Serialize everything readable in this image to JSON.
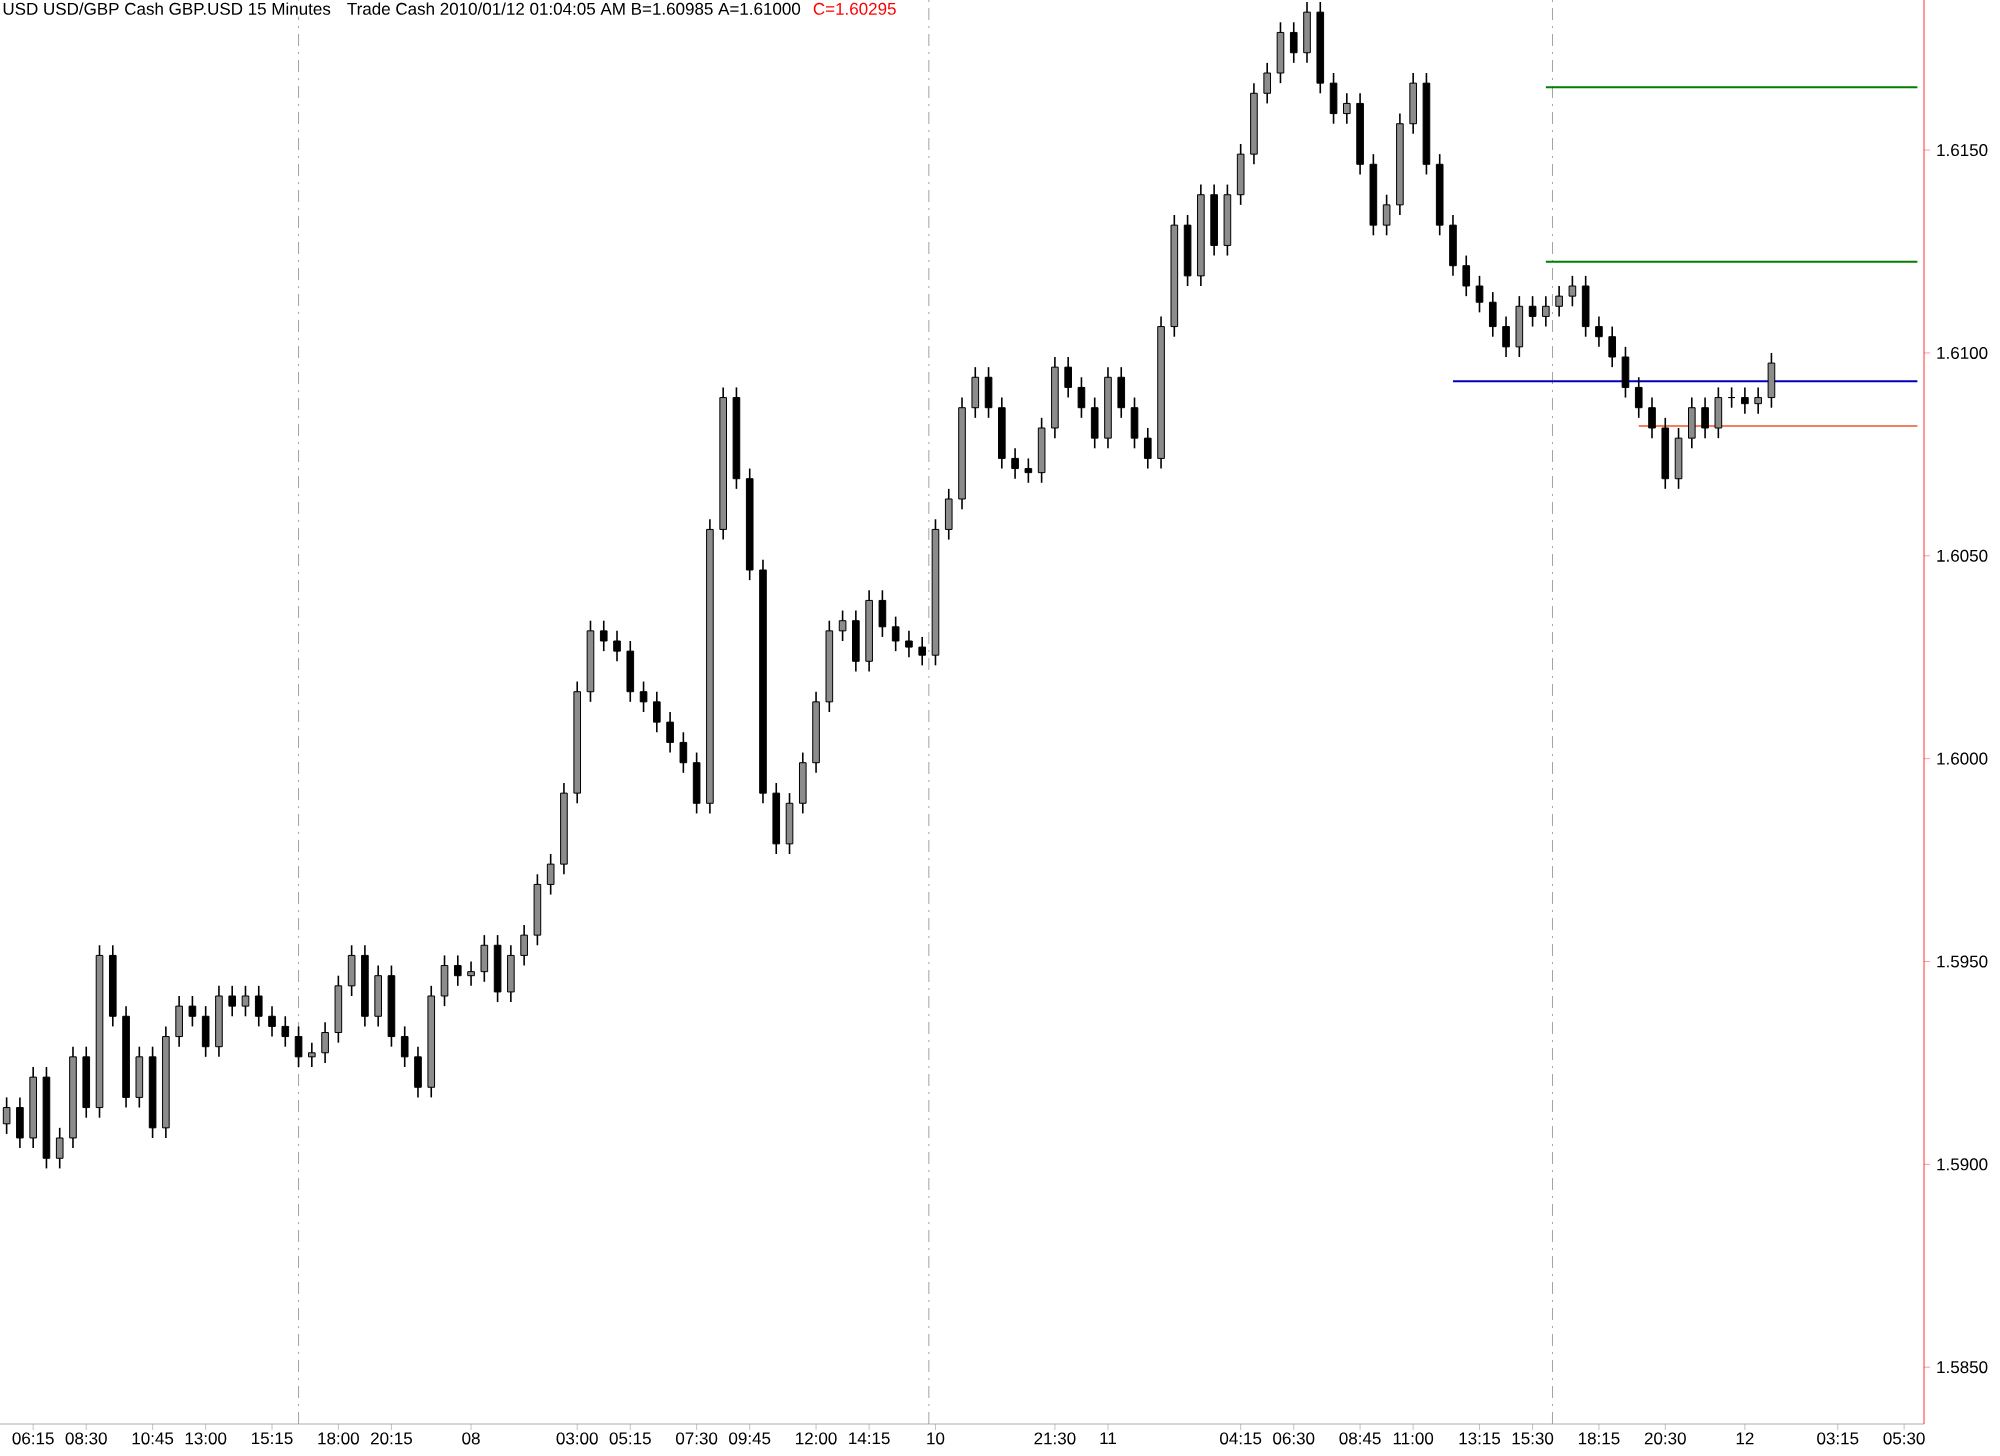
{
  "chart_data": {
    "type": "candlestick",
    "title": "USD USD/GBP Cash GBP.USD  15 Minutes",
    "subtitle": "Trade  Cash  2010/01/12  01:04:05 AM  B=1.60985  A=1.61000",
    "annotations": [
      "C=1.60295"
    ],
    "color": "#000000",
    "categories": [
      null,
      null,
      "06:15",
      null,
      null,
      null,
      "08:30",
      null,
      null,
      null,
      null,
      "10:45",
      null,
      null,
      null,
      "13:00",
      null,
      null,
      null,
      null,
      "15:15",
      null,
      null,
      null,
      null,
      "18:00",
      null,
      null,
      null,
      "20:15",
      null,
      null,
      null,
      null,
      null,
      "08",
      null,
      null,
      null,
      null,
      null,
      null,
      null,
      "03:00",
      null,
      null,
      null,
      "05:15",
      null,
      null,
      null,
      null,
      "07:30",
      null,
      null,
      null,
      "09:45",
      null,
      null,
      null,
      null,
      "12:00",
      null,
      null,
      null,
      "14:15",
      null,
      null,
      null,
      null,
      "10",
      null,
      null,
      null,
      null,
      null,
      null,
      null,
      null,
      "21:30",
      null,
      null,
      null,
      "11",
      null,
      null,
      null,
      null,
      null,
      null,
      null,
      null,
      null,
      "04:15",
      null,
      null,
      null,
      "06:30",
      null,
      null,
      null,
      null,
      "08:45",
      null,
      null,
      null,
      "11:00",
      null,
      null,
      null,
      null,
      "13:15",
      null,
      null,
      null,
      "15:30",
      null,
      null,
      null,
      null,
      "18:15",
      null,
      null,
      null,
      null,
      "20:30",
      null,
      null,
      null,
      null,
      null,
      "12",
      null,
      null,
      null,
      null,
      null,
      null,
      "03:15",
      null,
      null,
      null,
      null,
      "05:30",
      null
    ],
    "ohlc": [
      [
        1.591,
        1.59165,
        1.59075,
        1.5914
      ],
      [
        1.5914,
        1.59165,
        1.5904,
        1.59065
      ],
      [
        1.59065,
        1.5924,
        1.5904,
        1.59215
      ],
      [
        1.59215,
        1.5924,
        1.5899,
        1.59015
      ],
      [
        1.59015,
        1.5909,
        1.5899,
        1.59065
      ],
      [
        1.59065,
        1.5929,
        1.5904,
        1.59265
      ],
      [
        1.59265,
        1.5929,
        1.59115,
        1.5914
      ],
      [
        1.5914,
        1.5954,
        1.59115,
        1.59515
      ],
      [
        1.59515,
        1.5954,
        1.5934,
        1.59365
      ],
      [
        1.59365,
        1.5939,
        1.5914,
        1.59165
      ],
      [
        1.59165,
        1.5929,
        1.5914,
        1.59265
      ],
      [
        1.59265,
        1.5929,
        1.59065,
        1.5909
      ],
      [
        1.5909,
        1.5934,
        1.59065,
        1.59315
      ],
      [
        1.59315,
        1.59415,
        1.5929,
        1.5939
      ],
      [
        1.5939,
        1.59415,
        1.5934,
        1.59365
      ],
      [
        1.59365,
        1.5939,
        1.59265,
        1.5929
      ],
      [
        1.5929,
        1.5944,
        1.59265,
        1.59415
      ],
      [
        1.59415,
        1.5944,
        1.59365,
        1.5939
      ],
      [
        1.5939,
        1.5944,
        1.59365,
        1.59415
      ],
      [
        1.59415,
        1.5944,
        1.5934,
        1.59365
      ],
      [
        1.59365,
        1.5939,
        1.59315,
        1.5934
      ],
      [
        1.5934,
        1.59365,
        1.5929,
        1.59315
      ],
      [
        1.59315,
        1.5934,
        1.5924,
        1.59265
      ],
      [
        1.59265,
        1.593,
        1.5924,
        1.59275
      ],
      [
        1.59275,
        1.5935,
        1.5925,
        1.59325
      ],
      [
        1.59325,
        1.59465,
        1.593,
        1.5944
      ],
      [
        1.5944,
        1.5954,
        1.59415,
        1.59515
      ],
      [
        1.59515,
        1.5954,
        1.5934,
        1.59365
      ],
      [
        1.59365,
        1.5949,
        1.5934,
        1.59465
      ],
      [
        1.59465,
        1.5949,
        1.5929,
        1.59315
      ],
      [
        1.59315,
        1.5934,
        1.5924,
        1.59265
      ],
      [
        1.59265,
        1.5929,
        1.59165,
        1.5919
      ],
      [
        1.5919,
        1.5944,
        1.59165,
        1.59415
      ],
      [
        1.59415,
        1.59515,
        1.5939,
        1.5949
      ],
      [
        1.5949,
        1.59515,
        1.5944,
        1.59465
      ],
      [
        1.59465,
        1.595,
        1.5944,
        1.59475
      ],
      [
        1.59475,
        1.59565,
        1.5945,
        1.5954
      ],
      [
        1.5954,
        1.59565,
        1.594,
        1.59425
      ],
      [
        1.59425,
        1.5954,
        1.594,
        1.59515
      ],
      [
        1.59515,
        1.5959,
        1.5949,
        1.59565
      ],
      [
        1.59565,
        1.59715,
        1.5954,
        1.5969
      ],
      [
        1.5969,
        1.59765,
        1.59665,
        1.5974
      ],
      [
        1.5974,
        1.5994,
        1.59715,
        1.59915
      ],
      [
        1.59915,
        1.6019,
        1.5989,
        1.60165
      ],
      [
        1.60165,
        1.6034,
        1.6014,
        1.60315
      ],
      [
        1.60315,
        1.6034,
        1.60265,
        1.6029
      ],
      [
        1.6029,
        1.60315,
        1.6024,
        1.60265
      ],
      [
        1.60265,
        1.6029,
        1.6014,
        1.60165
      ],
      [
        1.60165,
        1.6019,
        1.60115,
        1.6014
      ],
      [
        1.6014,
        1.60165,
        1.60065,
        1.6009
      ],
      [
        1.6009,
        1.60115,
        1.60015,
        1.6004
      ],
      [
        1.6004,
        1.60065,
        1.59965,
        1.5999
      ],
      [
        1.5999,
        1.60015,
        1.59865,
        1.5989
      ],
      [
        1.5989,
        1.6059,
        1.59865,
        1.60565
      ],
      [
        1.60565,
        1.60915,
        1.6054,
        1.6089
      ],
      [
        1.6089,
        1.60915,
        1.60665,
        1.6069
      ],
      [
        1.6069,
        1.60715,
        1.6044,
        1.60465
      ],
      [
        1.60465,
        1.6049,
        1.5989,
        1.59915
      ],
      [
        1.59915,
        1.5994,
        1.59765,
        1.5979
      ],
      [
        1.5979,
        1.59915,
        1.59765,
        1.5989
      ],
      [
        1.5989,
        1.60015,
        1.59865,
        1.5999
      ],
      [
        1.5999,
        1.60165,
        1.59965,
        1.6014
      ],
      [
        1.6014,
        1.6034,
        1.60115,
        1.60315
      ],
      [
        1.60315,
        1.60365,
        1.6029,
        1.6034
      ],
      [
        1.6034,
        1.60365,
        1.60215,
        1.6024
      ],
      [
        1.6024,
        1.60415,
        1.60215,
        1.6039
      ],
      [
        1.6039,
        1.60415,
        1.603,
        1.60325
      ],
      [
        1.60325,
        1.6035,
        1.60265,
        1.6029
      ],
      [
        1.6029,
        1.60315,
        1.6025,
        1.60275
      ],
      [
        1.60275,
        1.603,
        1.6023,
        1.60255
      ],
      [
        1.60255,
        1.6059,
        1.6023,
        1.60565
      ],
      [
        1.60565,
        1.60665,
        1.6054,
        1.6064
      ],
      [
        1.6064,
        1.6089,
        1.60615,
        1.60865
      ],
      [
        1.60865,
        1.60965,
        1.6084,
        1.6094
      ],
      [
        1.6094,
        1.60965,
        1.6084,
        1.60865
      ],
      [
        1.60865,
        1.6089,
        1.60715,
        1.6074
      ],
      [
        1.6074,
        1.60765,
        1.6069,
        1.60715
      ],
      [
        1.60715,
        1.6074,
        1.6068,
        1.60705
      ],
      [
        1.60705,
        1.6084,
        1.6068,
        1.60815
      ],
      [
        1.60815,
        1.6099,
        1.6079,
        1.60965
      ],
      [
        1.60965,
        1.6099,
        1.6089,
        1.60915
      ],
      [
        1.60915,
        1.6094,
        1.6084,
        1.60865
      ],
      [
        1.60865,
        1.6089,
        1.60765,
        1.6079
      ],
      [
        1.6079,
        1.60965,
        1.60765,
        1.6094
      ],
      [
        1.6094,
        1.60965,
        1.6084,
        1.60865
      ],
      [
        1.60865,
        1.6089,
        1.60765,
        1.6079
      ],
      [
        1.6079,
        1.60815,
        1.60715,
        1.6074
      ],
      [
        1.6074,
        1.6109,
        1.60715,
        1.61065
      ],
      [
        1.61065,
        1.6134,
        1.6104,
        1.61315
      ],
      [
        1.61315,
        1.6134,
        1.61165,
        1.6119
      ],
      [
        1.6119,
        1.61415,
        1.61165,
        1.6139
      ],
      [
        1.6139,
        1.61415,
        1.6124,
        1.61265
      ],
      [
        1.61265,
        1.61415,
        1.6124,
        1.6139
      ],
      [
        1.6139,
        1.61515,
        1.61365,
        1.6149
      ],
      [
        1.6149,
        1.61665,
        1.61465,
        1.6164
      ],
      [
        1.6164,
        1.61715,
        1.61615,
        1.6169
      ],
      [
        1.6169,
        1.61815,
        1.61665,
        1.6179
      ],
      [
        1.6179,
        1.61815,
        1.61715,
        1.6174
      ],
      [
        1.6174,
        1.61865,
        1.61715,
        1.6184
      ],
      [
        1.6184,
        1.61865,
        1.6164,
        1.61665
      ],
      [
        1.61665,
        1.6169,
        1.61565,
        1.6159
      ],
      [
        1.6159,
        1.6164,
        1.61565,
        1.61615
      ],
      [
        1.61615,
        1.6164,
        1.6144,
        1.61465
      ],
      [
        1.61465,
        1.6149,
        1.6129,
        1.61315
      ],
      [
        1.61315,
        1.6139,
        1.6129,
        1.61365
      ],
      [
        1.61365,
        1.6159,
        1.6134,
        1.61565
      ],
      [
        1.61565,
        1.6169,
        1.6154,
        1.61665
      ],
      [
        1.61665,
        1.6169,
        1.6144,
        1.61465
      ],
      [
        1.61465,
        1.6149,
        1.6129,
        1.61315
      ],
      [
        1.61315,
        1.6134,
        1.6119,
        1.61215
      ],
      [
        1.61215,
        1.6124,
        1.6114,
        1.61165
      ],
      [
        1.61165,
        1.6119,
        1.611,
        1.61125
      ],
      [
        1.61125,
        1.6115,
        1.6104,
        1.61065
      ],
      [
        1.61065,
        1.6109,
        1.6099,
        1.61015
      ],
      [
        1.61015,
        1.6114,
        1.6099,
        1.61115
      ],
      [
        1.61115,
        1.6114,
        1.61065,
        1.6109
      ],
      [
        1.6109,
        1.6114,
        1.61065,
        1.61115
      ],
      [
        1.61115,
        1.61165,
        1.6109,
        1.6114
      ],
      [
        1.6114,
        1.6119,
        1.61115,
        1.61165
      ],
      [
        1.61165,
        1.6119,
        1.6104,
        1.61065
      ],
      [
        1.61065,
        1.6109,
        1.61015,
        1.6104
      ],
      [
        1.6104,
        1.61065,
        1.60965,
        1.6099
      ],
      [
        1.6099,
        1.61015,
        1.6089,
        1.60915
      ],
      [
        1.60915,
        1.6094,
        1.6084,
        1.60865
      ],
      [
        1.60865,
        1.6089,
        1.6079,
        1.60815
      ],
      [
        1.60815,
        1.6084,
        1.60665,
        1.6069
      ],
      [
        1.6069,
        1.60815,
        1.60665,
        1.6079
      ],
      [
        1.6079,
        1.6089,
        1.60765,
        1.60865
      ],
      [
        1.60865,
        1.6089,
        1.6079,
        1.60815
      ],
      [
        1.60815,
        1.60915,
        1.6079,
        1.6089
      ],
      [
        1.6089,
        1.60915,
        1.60865,
        1.6089
      ],
      [
        1.6089,
        1.60915,
        1.6085,
        1.60875
      ],
      [
        1.60875,
        1.60915,
        1.6085,
        1.6089
      ],
      [
        1.6089,
        1.61,
        1.60865,
        1.60975
      ],
      null,
      null,
      null,
      null,
      null,
      null,
      null,
      null,
      null,
      null,
      null
    ],
    "series": [
      {
        "type": "line",
        "color": "#008000",
        "values": [
          null,
          null,
          null,
          null,
          null,
          null,
          null,
          null,
          null,
          null,
          null,
          null,
          null,
          null,
          null,
          null,
          null,
          null,
          null,
          null,
          null,
          null,
          null,
          null,
          null,
          null,
          null,
          null,
          null,
          null,
          null,
          null,
          null,
          null,
          null,
          null,
          null,
          null,
          null,
          null,
          null,
          null,
          null,
          null,
          null,
          null,
          null,
          null,
          null,
          null,
          null,
          null,
          null,
          null,
          null,
          null,
          null,
          null,
          null,
          null,
          null,
          null,
          null,
          null,
          null,
          null,
          null,
          null,
          null,
          null,
          null,
          null,
          null,
          null,
          null,
          null,
          null,
          null,
          null,
          null,
          null,
          null,
          null,
          null,
          null,
          null,
          null,
          null,
          null,
          null,
          null,
          null,
          null,
          null,
          null,
          null,
          null,
          null,
          null,
          null,
          null,
          null,
          null,
          null,
          null,
          null,
          null,
          null,
          null,
          null,
          null,
          null,
          null,
          null,
          null,
          null,
          1.61655,
          1.61655,
          1.61655,
          1.61655,
          1.61655,
          1.61655,
          1.61655,
          1.61655,
          1.61655,
          1.61655,
          1.61655,
          1.61655,
          1.61655,
          1.61655,
          1.61655,
          1.61655,
          1.61655,
          1.61655,
          1.61655,
          1.61655,
          1.61655,
          1.61655,
          1.61655,
          1.61655,
          1.61655,
          1.61655,
          1.61655,
          1.61655,
          1.61655
        ]
      },
      {
        "type": "line",
        "color": "#008000",
        "values": [
          null,
          null,
          null,
          null,
          null,
          null,
          null,
          null,
          null,
          null,
          null,
          null,
          null,
          null,
          null,
          null,
          null,
          null,
          null,
          null,
          null,
          null,
          null,
          null,
          null,
          null,
          null,
          null,
          null,
          null,
          null,
          null,
          null,
          null,
          null,
          null,
          null,
          null,
          null,
          null,
          null,
          null,
          null,
          null,
          null,
          null,
          null,
          null,
          null,
          null,
          null,
          null,
          null,
          null,
          null,
          null,
          null,
          null,
          null,
          null,
          null,
          null,
          null,
          null,
          null,
          null,
          null,
          null,
          null,
          null,
          null,
          null,
          null,
          null,
          null,
          null,
          null,
          null,
          null,
          null,
          null,
          null,
          null,
          null,
          null,
          null,
          null,
          null,
          null,
          null,
          null,
          null,
          null,
          null,
          null,
          null,
          null,
          null,
          null,
          null,
          null,
          null,
          null,
          null,
          null,
          null,
          null,
          null,
          null,
          null,
          null,
          null,
          null,
          null,
          null,
          null,
          1.61225,
          1.61225,
          1.61225,
          1.61225,
          1.61225,
          1.61225,
          1.61225,
          1.61225,
          1.61225,
          1.61225,
          1.61225,
          1.61225,
          1.61225,
          1.61225,
          1.61225,
          1.61225,
          1.61225,
          1.61225,
          1.61225,
          1.61225,
          1.61225,
          1.61225,
          1.61225,
          1.61225,
          1.61225,
          1.61225,
          1.61225,
          1.61225,
          1.61225
        ]
      },
      {
        "type": "line",
        "color": "#0000c0",
        "values": [
          null,
          null,
          null,
          null,
          null,
          null,
          null,
          null,
          null,
          null,
          null,
          null,
          null,
          null,
          null,
          null,
          null,
          null,
          null,
          null,
          null,
          null,
          null,
          null,
          null,
          null,
          null,
          null,
          null,
          null,
          null,
          null,
          null,
          null,
          null,
          null,
          null,
          null,
          null,
          null,
          null,
          null,
          null,
          null,
          null,
          null,
          null,
          null,
          null,
          null,
          null,
          null,
          null,
          null,
          null,
          null,
          null,
          null,
          null,
          null,
          null,
          null,
          null,
          null,
          null,
          null,
          null,
          null,
          null,
          null,
          null,
          null,
          null,
          null,
          null,
          null,
          null,
          null,
          null,
          null,
          null,
          null,
          null,
          null,
          null,
          null,
          null,
          null,
          null,
          null,
          null,
          null,
          null,
          null,
          null,
          null,
          null,
          null,
          null,
          null,
          null,
          null,
          null,
          null,
          null,
          null,
          null,
          null,
          null,
          1.6093,
          1.6093,
          1.6093,
          1.6093,
          1.6093,
          1.6093,
          1.6093,
          1.6093,
          1.6093,
          1.6093,
          1.6093,
          1.6093,
          1.6093,
          1.6093,
          1.6093,
          1.6093,
          1.6093,
          1.6093,
          1.6093,
          1.6093,
          1.6093,
          1.6093,
          1.6093,
          1.6093,
          1.6093,
          1.6093,
          1.6093,
          1.6093,
          1.6093,
          1.6093,
          1.6093,
          1.6093,
          1.6093,
          1.6093,
          1.6093,
          1.6093
        ]
      },
      {
        "type": "line",
        "color": "#f08060",
        "values": [
          null,
          null,
          null,
          null,
          null,
          null,
          null,
          null,
          null,
          null,
          null,
          null,
          null,
          null,
          null,
          null,
          null,
          null,
          null,
          null,
          null,
          null,
          null,
          null,
          null,
          null,
          null,
          null,
          null,
          null,
          null,
          null,
          null,
          null,
          null,
          null,
          null,
          null,
          null,
          null,
          null,
          null,
          null,
          null,
          null,
          null,
          null,
          null,
          null,
          null,
          null,
          null,
          null,
          null,
          null,
          null,
          null,
          null,
          null,
          null,
          null,
          null,
          null,
          null,
          null,
          null,
          null,
          null,
          null,
          null,
          null,
          null,
          null,
          null,
          null,
          null,
          null,
          null,
          null,
          null,
          null,
          null,
          null,
          null,
          null,
          null,
          null,
          null,
          null,
          null,
          null,
          null,
          null,
          null,
          null,
          null,
          null,
          null,
          null,
          null,
          null,
          null,
          null,
          null,
          null,
          null,
          null,
          null,
          null,
          null,
          null,
          null,
          null,
          null,
          null,
          null,
          null,
          null,
          null,
          null,
          null,
          null,
          null,
          1.6082,
          1.6082,
          1.6082,
          1.6082,
          1.6082,
          1.6082,
          1.6082,
          1.6082,
          1.6082,
          1.6082,
          1.6082,
          1.6082,
          1.6082,
          1.6082,
          1.6082,
          1.6082,
          1.6082,
          1.6082,
          1.6082,
          1.6082,
          1.6082,
          1.6082
        ]
      }
    ],
    "ylim": [
      1.5836,
      1.6187
    ],
    "yticks": [
      {
        "value": 1.585,
        "label": "1.5850"
      },
      {
        "value": 1.59,
        "label": "1.5900"
      },
      {
        "value": 1.595,
        "label": "1.5950"
      },
      {
        "value": 1.6,
        "label": "1.6000"
      },
      {
        "value": 1.605,
        "label": "1.6050"
      },
      {
        "value": 1.61,
        "label": "1.6100"
      },
      {
        "value": 1.615,
        "label": "1.6150"
      }
    ],
    "grid": false
  }
}
